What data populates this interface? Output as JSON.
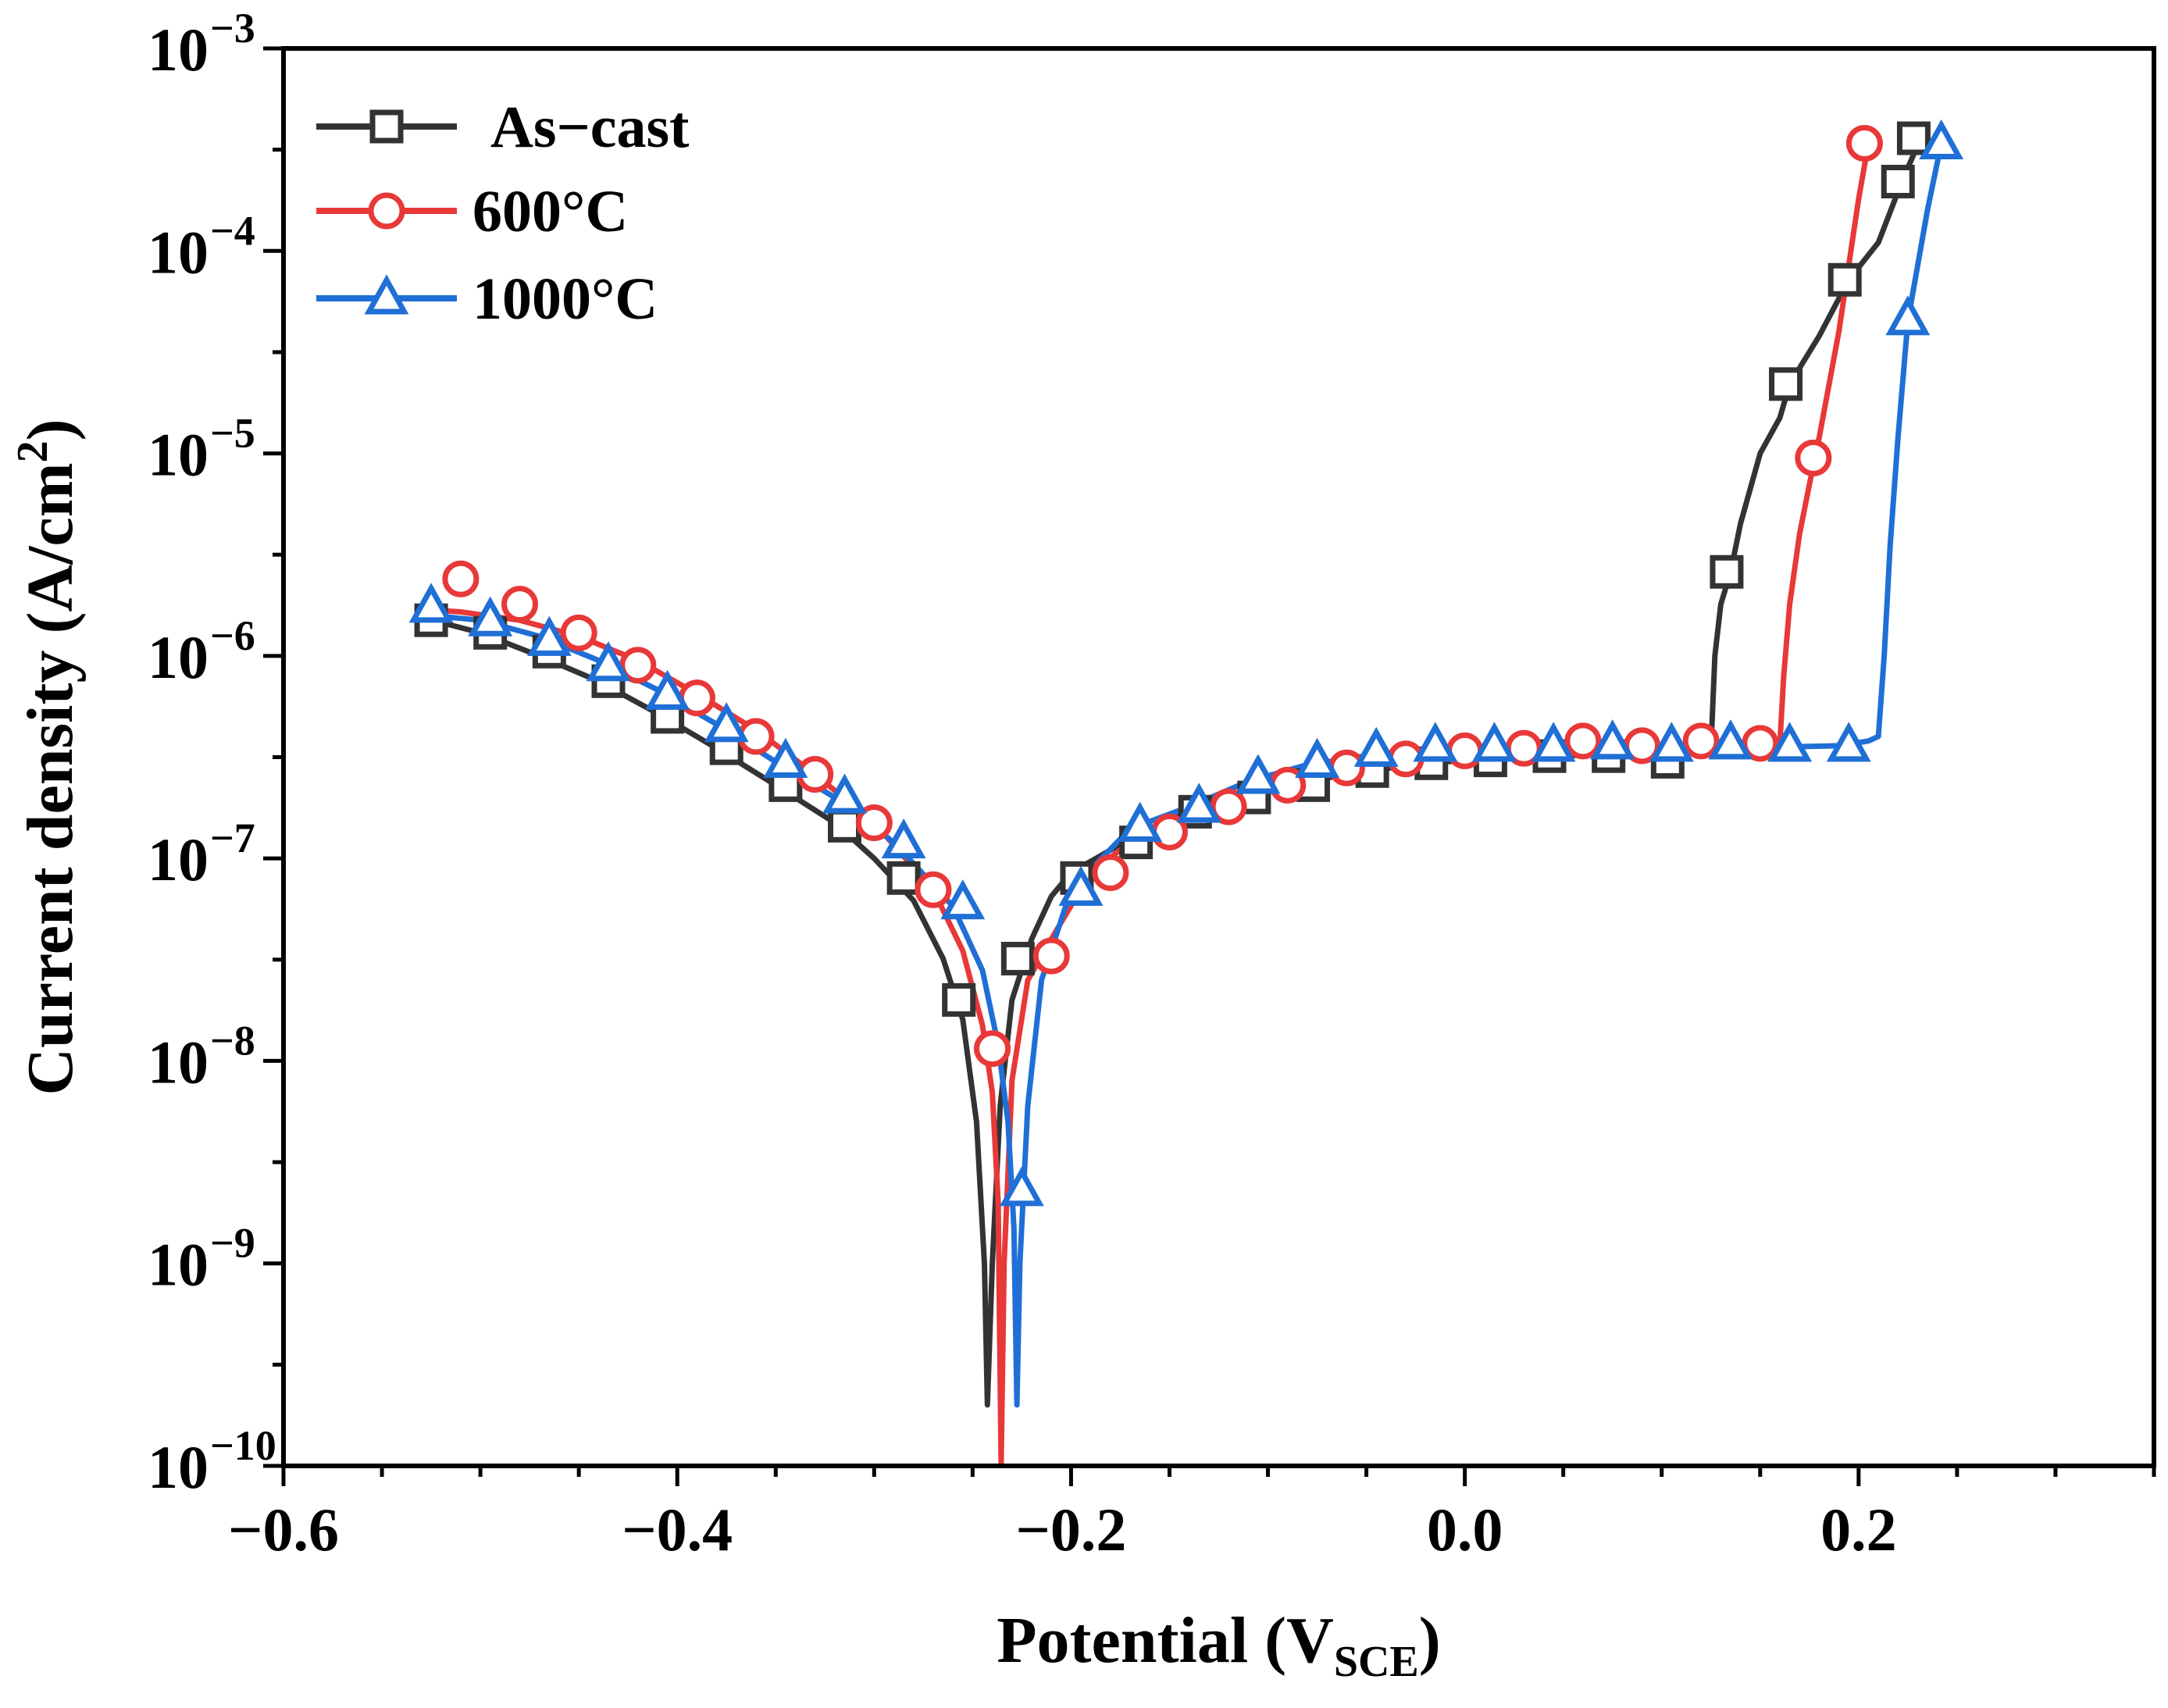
{
  "chart_data": {
    "type": "line",
    "y_scale": "log",
    "title": "",
    "xlabel": {
      "main": "Potential (V",
      "sub": "SCE",
      "close": ")"
    },
    "ylabel": {
      "main": "Current density (A/cm",
      "sup": "2",
      "close": ")"
    },
    "xlim": [
      -0.6,
      0.35
    ],
    "ylim": [
      1e-10,
      0.001
    ],
    "x_ticks": [
      {
        "value": -0.6,
        "label": "−0.6"
      },
      {
        "value": -0.4,
        "label": "−0.4"
      },
      {
        "value": -0.2,
        "label": "−0.2"
      },
      {
        "value": 0.0,
        "label": "0.0"
      },
      {
        "value": 0.2,
        "label": "0.2"
      }
    ],
    "y_ticks": [
      {
        "value": 1e-10,
        "base": "10",
        "exp": "−10"
      },
      {
        "value": 1e-09,
        "base": "10",
        "exp": "−9"
      },
      {
        "value": 1e-08,
        "base": "10",
        "exp": "−8"
      },
      {
        "value": 1e-07,
        "base": "10",
        "exp": "−7"
      },
      {
        "value": 1e-06,
        "base": "10",
        "exp": "−6"
      },
      {
        "value": 1e-05,
        "base": "10",
        "exp": "−5"
      },
      {
        "value": 0.0001,
        "base": "10",
        "exp": "−4"
      },
      {
        "value": 0.001,
        "base": "10",
        "exp": "−3"
      }
    ],
    "legend_position": "top-left",
    "series": [
      {
        "name": "As−cast",
        "color": "#333333",
        "marker": "square",
        "curve": {
          "x": [
            -0.53,
            -0.5,
            -0.47,
            -0.44,
            -0.41,
            -0.38,
            -0.35,
            -0.32,
            -0.3,
            -0.28,
            -0.265,
            -0.255,
            -0.248,
            -0.244,
            -0.2425,
            -0.24,
            -0.236,
            -0.23,
            -0.22,
            -0.21,
            -0.2,
            -0.17,
            -0.14,
            -0.11,
            -0.08,
            -0.05,
            -0.02,
            0.01,
            0.04,
            0.07,
            0.1,
            0.125,
            0.127,
            0.13,
            0.135,
            0.14,
            0.15,
            0.16,
            0.165,
            0.18,
            0.195,
            0.21,
            0.222,
            0.228,
            0.232
          ],
          "y": [
            1.55e-06,
            1.3e-06,
            1e-06,
            7.5e-07,
            5.2e-07,
            3.5e-07,
            2.3e-07,
            1.5e-07,
            1e-07,
            6.2e-08,
            3.2e-08,
            1.6e-08,
            5e-09,
            1e-09,
            2e-10,
            1e-09,
            6e-09,
            2e-08,
            4e-08,
            6.5e-08,
            8.5e-08,
            1.25e-07,
            1.7e-07,
            2e-07,
            2.4e-07,
            2.7e-07,
            2.95e-07,
            3.1e-07,
            3.2e-07,
            3.25e-07,
            3.3e-07,
            3.5e-07,
            1e-06,
            1.8e-06,
            2.6e-06,
            4.5e-06,
            1e-05,
            1.5e-05,
            2.2e-05,
            3.8e-05,
            7.2e-05,
            0.00011,
            0.00022,
            0.0003,
            0.00036
          ]
        },
        "markers": {
          "x": [
            -0.525,
            -0.495,
            -0.465,
            -0.435,
            -0.405,
            -0.375,
            -0.345,
            -0.315,
            -0.285,
            -0.257,
            -0.227,
            -0.197,
            -0.167,
            -0.137,
            -0.107,
            -0.077,
            -0.047,
            -0.017,
            0.013,
            0.043,
            0.073,
            0.103,
            0.133,
            0.163,
            0.193,
            0.22,
            0.228
          ],
          "y": [
            1.5e-06,
            1.3e-06,
            1.05e-06,
            7.5e-07,
            5e-07,
            3.5e-07,
            2.3e-07,
            1.45e-07,
            8e-08,
            2e-08,
            3.2e-08,
            8e-08,
            1.2e-07,
            1.7e-07,
            2e-07,
            2.3e-07,
            2.7e-07,
            2.95e-07,
            3.05e-07,
            3.2e-07,
            3.2e-07,
            3e-07,
            2.6e-06,
            2.2e-05,
            7.2e-05,
            0.00022,
            0.00036
          ]
        }
      },
      {
        "name": "600°C",
        "color": "#e83838",
        "marker": "circle",
        "curve": {
          "x": [
            -0.53,
            -0.51,
            -0.48,
            -0.45,
            -0.42,
            -0.39,
            -0.36,
            -0.33,
            -0.3,
            -0.27,
            -0.255,
            -0.245,
            -0.24,
            -0.237,
            -0.2355,
            -0.234,
            -0.23,
            -0.222,
            -0.21,
            -0.19,
            -0.17,
            -0.15,
            -0.12,
            -0.09,
            -0.06,
            -0.03,
            0.0,
            0.03,
            0.06,
            0.09,
            0.12,
            0.16,
            0.162,
            0.165,
            0.17,
            0.175,
            0.18,
            0.19,
            0.2,
            0.205
          ],
          "y": [
            1.7e-06,
            1.65e-06,
            1.5e-06,
            1.25e-06,
            9.5e-07,
            6.5e-07,
            4.3e-07,
            2.6e-07,
            1.5e-07,
            7e-08,
            3.5e-08,
            1.5e-08,
            7e-09,
            2e-09,
            1e-10,
            1e-09,
            8e-09,
            2.5e-08,
            4e-08,
            8.5e-08,
            1.2e-07,
            1.4e-07,
            1.8e-07,
            2.3e-07,
            2.8e-07,
            3.1e-07,
            3.3e-07,
            3.4e-07,
            3.5e-07,
            3.6e-07,
            3.6e-07,
            3.7e-07,
            8e-07,
            1.8e-06,
            4e-06,
            7e-06,
            1.2e-05,
            4e-05,
            0.00018,
            0.00034
          ]
        },
        "markers": {
          "x": [
            -0.51,
            -0.48,
            -0.45,
            -0.42,
            -0.39,
            -0.36,
            -0.33,
            -0.3,
            -0.27,
            -0.24,
            -0.21,
            -0.18,
            -0.15,
            -0.12,
            -0.09,
            -0.06,
            -0.03,
            0.0,
            0.03,
            0.06,
            0.09,
            0.12,
            0.15,
            0.177,
            0.203
          ],
          "y": [
            2.4e-06,
            1.8e-06,
            1.3e-06,
            9e-07,
            6.2e-07,
            4e-07,
            2.6e-07,
            1.5e-07,
            7e-08,
            1.15e-08,
            3.3e-08,
            8.5e-08,
            1.35e-07,
            1.8e-07,
            2.3e-07,
            2.8e-07,
            3.1e-07,
            3.4e-07,
            3.5e-07,
            3.8e-07,
            3.6e-07,
            3.8e-07,
            3.7e-07,
            9.5e-06,
            0.00034
          ]
        }
      },
      {
        "name": "1000°C",
        "color": "#1f6fd6",
        "marker": "triangle",
        "curve": {
          "x": [
            -0.53,
            -0.5,
            -0.47,
            -0.44,
            -0.41,
            -0.38,
            -0.35,
            -0.32,
            -0.29,
            -0.26,
            -0.245,
            -0.237,
            -0.232,
            -0.229,
            -0.2275,
            -0.226,
            -0.222,
            -0.215,
            -0.2,
            -0.17,
            -0.14,
            -0.11,
            -0.08,
            -0.05,
            -0.02,
            0.01,
            0.04,
            0.07,
            0.1,
            0.13,
            0.16,
            0.19,
            0.205,
            0.21,
            0.213,
            0.216,
            0.22,
            0.225,
            0.235,
            0.242
          ],
          "y": [
            1.6e-06,
            1.5e-06,
            1.25e-06,
            9.5e-07,
            6.8e-07,
            4.6e-07,
            3e-07,
            2e-07,
            1.2e-07,
            5.8e-08,
            2.8e-08,
            1.2e-08,
            5e-09,
            1.5e-09,
            2e-10,
            1e-09,
            6e-09,
            2.5e-08,
            7e-08,
            1.4e-07,
            1.8e-07,
            2.4e-07,
            2.9e-07,
            3.2e-07,
            3.4e-07,
            3.5e-07,
            3.5e-07,
            3.55e-07,
            3.55e-07,
            3.55e-07,
            3.55e-07,
            3.6e-07,
            3.8e-07,
            4e-07,
            1e-06,
            3.5e-06,
            1.2e-05,
            4.5e-05,
            0.00016,
            0.00034
          ]
        },
        "markers": {
          "x": [
            -0.525,
            -0.495,
            -0.465,
            -0.435,
            -0.405,
            -0.375,
            -0.345,
            -0.315,
            -0.285,
            -0.255,
            -0.225,
            -0.195,
            -0.165,
            -0.135,
            -0.105,
            -0.075,
            -0.045,
            -0.015,
            0.015,
            0.045,
            0.075,
            0.105,
            0.135,
            0.165,
            0.195,
            0.225,
            0.242
          ],
          "y": [
            1.75e-06,
            1.5e-06,
            1.2e-06,
            9e-07,
            6.5e-07,
            4.5e-07,
            3e-07,
            2e-07,
            1.2e-07,
            6e-08,
            2.3e-09,
            7e-08,
            1.45e-07,
            1.8e-07,
            2.5e-07,
            3e-07,
            3.4e-07,
            3.6e-07,
            3.6e-07,
            3.6e-07,
            3.7e-07,
            3.6e-07,
            3.7e-07,
            3.6e-07,
            3.6e-07,
            4.6e-05,
            0.00034
          ]
        }
      }
    ]
  }
}
